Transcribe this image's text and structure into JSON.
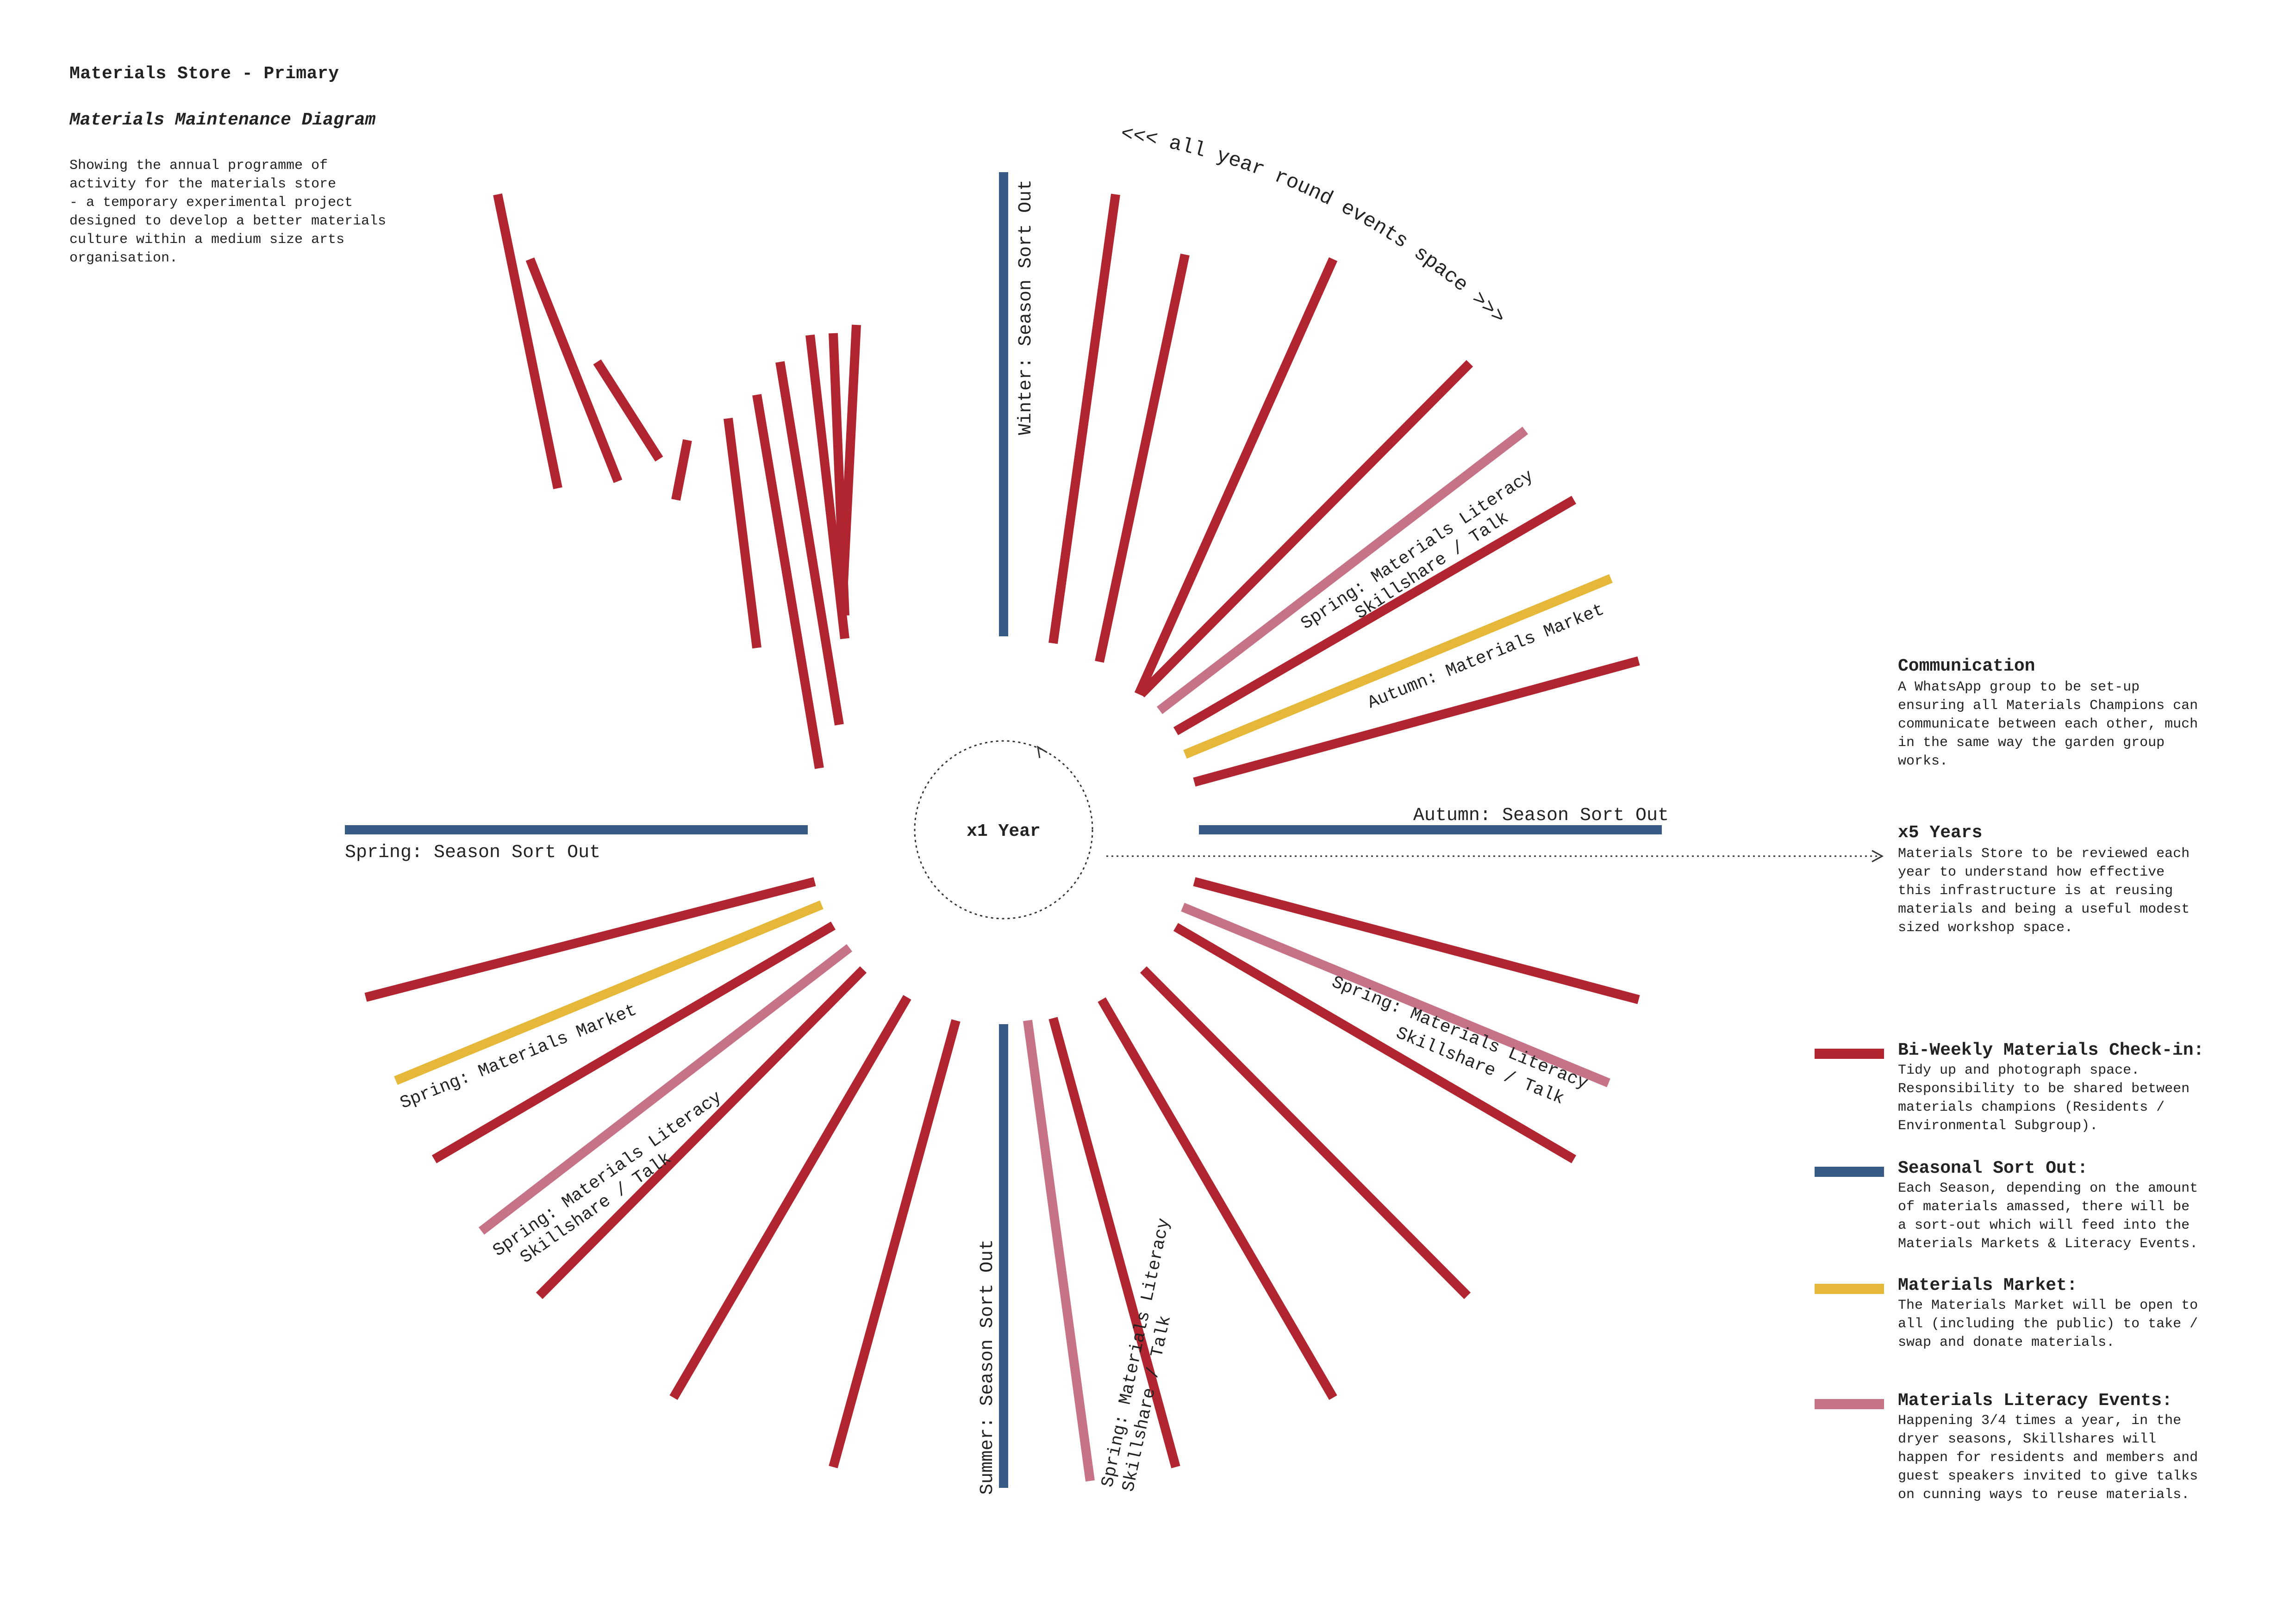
{
  "header": {
    "title": "Materials Store - Primary",
    "subtitle": "Materials Maintenance Diagram",
    "intro": "Showing the annual programme of\nactivity for the materials store\n- a temporary experimental project\ndesigned to develop a better materials\nculture within a medium size arts\norganisation."
  },
  "colors": {
    "checkin": "#b0252f",
    "seasonal": "#365c85",
    "market": "#e6b83a",
    "literacy": "#c67387"
  },
  "diagram": {
    "center_label": "x1 Year",
    "arc_label": "<<< all year round events space >>>",
    "seasonal_labels": {
      "winter": "Winter: Season Sort Out",
      "spring": "Spring: Season Sort Out",
      "autumn": "Autumn: Season Sort Out",
      "summer": "Summer: Season Sort Out"
    },
    "event_labels": [
      {
        "id": "spring-literacy-ne",
        "line1": "Spring: Materials Literacy",
        "line2": "Skillshare / Talk"
      },
      {
        "id": "autumn-market-ne",
        "line1": "Autumn: Materials Market"
      },
      {
        "id": "spring-literacy-se",
        "line1": "Spring: Materials Literacy",
        "line2": "Skillshare / Talk"
      },
      {
        "id": "spring-market-sw",
        "line1": "Spring: Materials Market"
      },
      {
        "id": "spring-literacy-sw",
        "line1": "Spring: Materials Literacy",
        "line2": "Skillshare / Talk"
      },
      {
        "id": "spring-literacy-s",
        "line1": "Spring: Materials Literacy",
        "line2": "Skillshare / Talk"
      }
    ]
  },
  "communication": {
    "heading": "Communication",
    "body": "A WhatsApp group to be set-up\nensuring all Materials Champions can\ncommunicate between each other, much\nin the same way the garden group\nworks."
  },
  "five_years": {
    "heading": "x5 Years",
    "body": "Materials Store to be reviewed each\nyear to understand how effective\nthis infrastructure is at reusing\nmaterials and being a useful modest\nsized workshop space."
  },
  "legend": [
    {
      "key": "checkin",
      "heading": "Bi-Weekly Materials Check-in:",
      "body": "Tidy up and photograph space.\nResponsibility to be shared between\nmaterials champions (Residents /\nEnvironmental Subgroup)."
    },
    {
      "key": "seasonal",
      "heading": "Seasonal Sort Out:",
      "body": "Each Season, depending on the amount\nof materials amassed, there will be\na sort-out which will feed into the\nMaterials Markets & Literacy Events."
    },
    {
      "key": "market",
      "heading": "Materials Market:",
      "body": "The Materials Market will be open to\nall (including the public) to take /\nswap and donate materials."
    },
    {
      "key": "literacy",
      "heading": "Materials Literacy Events:",
      "body": "Happening 3/4 times a year, in the\ndryer seasons, Skillshares will\nhappen for residents and members and\nguest speakers invited to give talks\non cunning ways to reuse materials."
    }
  ]
}
